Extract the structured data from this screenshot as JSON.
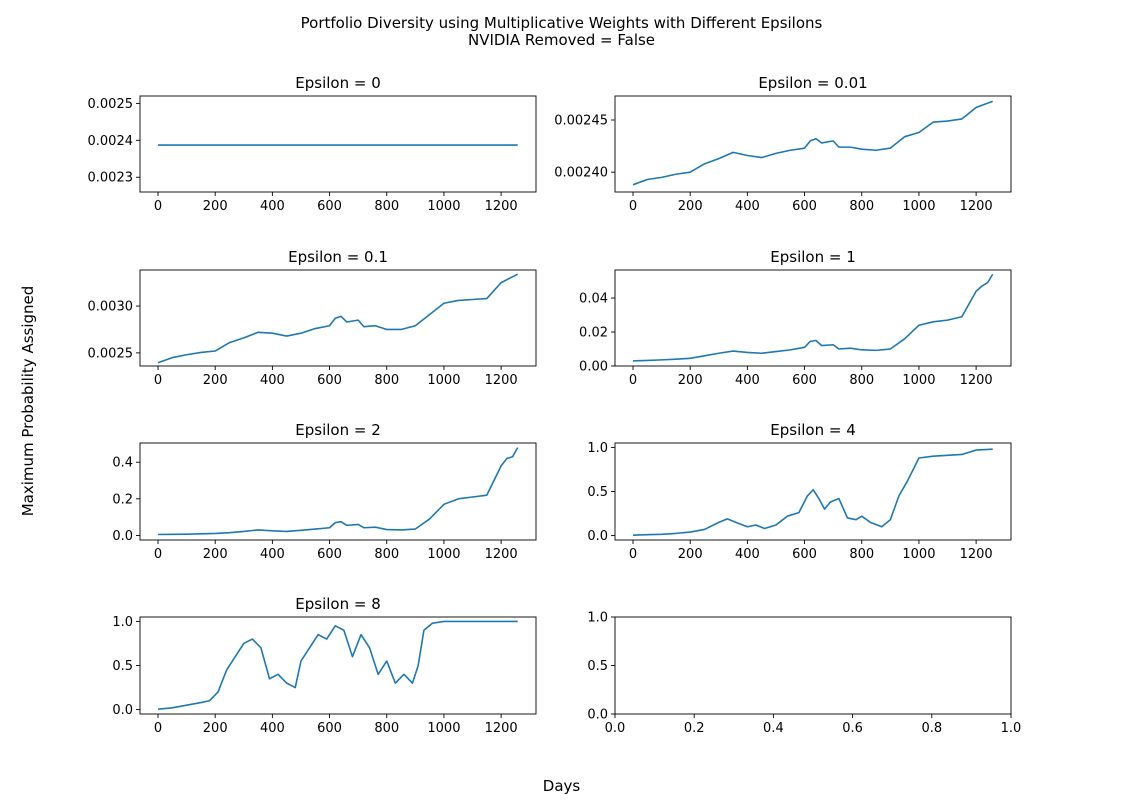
{
  "figure": {
    "title_line1": "Portfolio Diversity using Multiplicative Weights with Different Epsilons",
    "title_line2": "NVIDIA Removed = False",
    "ylabel": "Maximum Probability Assigned",
    "xlabel": "Days"
  },
  "colors": {
    "line": "#1f77b4",
    "axes": "#000000",
    "background": "#ffffff"
  },
  "chart_data": [
    {
      "type": "line",
      "title": "Epsilon = 0",
      "xlim": [
        -63,
        1322
      ],
      "ylim": [
        0.00226,
        0.00252
      ],
      "xticks": [
        0,
        200,
        400,
        600,
        800,
        1000,
        1200
      ],
      "xtick_labels": [
        "0",
        "200",
        "400",
        "600",
        "800",
        "1000",
        "1200"
      ],
      "yticks": [
        0.0023,
        0.0024,
        0.0025
      ],
      "ytick_labels": [
        "0.0023",
        "0.0024",
        "0.0025"
      ],
      "series": [
        {
          "x": [
            0,
            1258
          ],
          "y": [
            0.002387,
            0.002387
          ]
        }
      ]
    },
    {
      "type": "line",
      "title": "Epsilon = 0.01",
      "xlim": [
        -63,
        1322
      ],
      "ylim": [
        0.002381,
        0.002473
      ],
      "xticks": [
        0,
        200,
        400,
        600,
        800,
        1000,
        1200
      ],
      "xtick_labels": [
        "0",
        "200",
        "400",
        "600",
        "800",
        "1000",
        "1200"
      ],
      "yticks": [
        0.0024,
        0.00245
      ],
      "ytick_labels": [
        "0.00240",
        "0.00245"
      ],
      "series": [
        {
          "x": [
            0,
            50,
            100,
            150,
            200,
            250,
            300,
            350,
            400,
            450,
            500,
            550,
            600,
            620,
            640,
            660,
            700,
            720,
            760,
            800,
            850,
            900,
            950,
            1000,
            1050,
            1100,
            1150,
            1200,
            1258
          ],
          "y": [
            0.002388,
            0.002393,
            0.002395,
            0.002398,
            0.0024,
            0.002408,
            0.002413,
            0.002419,
            0.002416,
            0.002414,
            0.002418,
            0.002421,
            0.002423,
            0.00243,
            0.002432,
            0.002428,
            0.00243,
            0.002424,
            0.002424,
            0.002422,
            0.002421,
            0.002423,
            0.002434,
            0.002438,
            0.002448,
            0.002449,
            0.002451,
            0.002462,
            0.002468
          ]
        }
      ]
    },
    {
      "type": "line",
      "title": "Epsilon = 0.1",
      "xlim": [
        -63,
        1322
      ],
      "ylim": [
        0.00236,
        0.003385
      ],
      "xticks": [
        0,
        200,
        400,
        600,
        800,
        1000,
        1200
      ],
      "xtick_labels": [
        "0",
        "200",
        "400",
        "600",
        "800",
        "1000",
        "1200"
      ],
      "yticks": [
        0.0025,
        0.003
      ],
      "ytick_labels": [
        "0.0025",
        "0.0030"
      ],
      "series": [
        {
          "x": [
            0,
            50,
            100,
            150,
            200,
            250,
            300,
            350,
            400,
            450,
            500,
            550,
            600,
            620,
            640,
            660,
            700,
            720,
            760,
            800,
            850,
            900,
            950,
            1000,
            1050,
            1100,
            1150,
            1200,
            1258
          ],
          "y": [
            0.002395,
            0.00245,
            0.00248,
            0.002505,
            0.00252,
            0.00261,
            0.00266,
            0.00272,
            0.00271,
            0.00268,
            0.00271,
            0.00276,
            0.00279,
            0.00287,
            0.00289,
            0.00283,
            0.00285,
            0.00278,
            0.00279,
            0.00275,
            0.00275,
            0.00279,
            0.00291,
            0.00303,
            0.00306,
            0.00307,
            0.00308,
            0.00325,
            0.00334
          ]
        }
      ]
    },
    {
      "type": "line",
      "title": "Epsilon = 1",
      "xlim": [
        -63,
        1322
      ],
      "ylim": [
        0,
        0.0565
      ],
      "xticks": [
        0,
        200,
        400,
        600,
        800,
        1000,
        1200
      ],
      "xtick_labels": [
        "0",
        "200",
        "400",
        "600",
        "800",
        "1000",
        "1200"
      ],
      "yticks": [
        0,
        0.02,
        0.04
      ],
      "ytick_labels": [
        "0.00",
        "0.02",
        "0.04"
      ],
      "series": [
        {
          "x": [
            0,
            50,
            100,
            150,
            200,
            250,
            300,
            350,
            400,
            450,
            500,
            550,
            600,
            620,
            640,
            660,
            700,
            720,
            760,
            800,
            850,
            900,
            950,
            1000,
            1050,
            1100,
            1150,
            1200,
            1220,
            1240,
            1258
          ],
          "y": [
            0.003,
            0.0033,
            0.0036,
            0.004,
            0.0045,
            0.006,
            0.0075,
            0.0088,
            0.008,
            0.0075,
            0.0085,
            0.0095,
            0.011,
            0.0145,
            0.015,
            0.012,
            0.0125,
            0.01,
            0.0105,
            0.0095,
            0.0092,
            0.01,
            0.016,
            0.024,
            0.026,
            0.027,
            0.029,
            0.044,
            0.047,
            0.049,
            0.054
          ]
        }
      ]
    },
    {
      "type": "line",
      "title": "Epsilon = 2",
      "xlim": [
        -63,
        1322
      ],
      "ylim": [
        -0.025,
        0.505
      ],
      "xticks": [
        0,
        200,
        400,
        600,
        800,
        1000,
        1200
      ],
      "xtick_labels": [
        "0",
        "200",
        "400",
        "600",
        "800",
        "1000",
        "1200"
      ],
      "yticks": [
        0,
        0.2,
        0.4
      ],
      "ytick_labels": [
        "0.0",
        "0.2",
        "0.4"
      ],
      "series": [
        {
          "x": [
            0,
            50,
            100,
            150,
            200,
            250,
            300,
            350,
            400,
            450,
            500,
            550,
            600,
            620,
            640,
            660,
            700,
            720,
            760,
            800,
            850,
            900,
            950,
            1000,
            1050,
            1100,
            1150,
            1200,
            1220,
            1240,
            1258
          ],
          "y": [
            0.005,
            0.006,
            0.007,
            0.009,
            0.011,
            0.015,
            0.022,
            0.03,
            0.025,
            0.022,
            0.028,
            0.035,
            0.042,
            0.07,
            0.075,
            0.055,
            0.06,
            0.042,
            0.045,
            0.032,
            0.03,
            0.035,
            0.09,
            0.17,
            0.2,
            0.21,
            0.22,
            0.38,
            0.42,
            0.43,
            0.48
          ]
        }
      ]
    },
    {
      "type": "line",
      "title": "Epsilon = 4",
      "xlim": [
        -63,
        1322
      ],
      "ylim": [
        -0.05,
        1.05
      ],
      "xticks": [
        0,
        200,
        400,
        600,
        800,
        1000,
        1200
      ],
      "xtick_labels": [
        "0",
        "200",
        "400",
        "600",
        "800",
        "1000",
        "1200"
      ],
      "yticks": [
        0,
        0.5,
        1.0
      ],
      "ytick_labels": [
        "0.0",
        "0.5",
        "1.0"
      ],
      "series": [
        {
          "x": [
            0,
            50,
            100,
            150,
            200,
            250,
            300,
            330,
            360,
            400,
            430,
            460,
            500,
            540,
            580,
            610,
            630,
            650,
            670,
            690,
            720,
            750,
            780,
            800,
            830,
            870,
            900,
            930,
            960,
            1000,
            1050,
            1100,
            1150,
            1200,
            1258
          ],
          "y": [
            0.005,
            0.01,
            0.015,
            0.025,
            0.04,
            0.07,
            0.15,
            0.19,
            0.15,
            0.1,
            0.12,
            0.08,
            0.12,
            0.22,
            0.26,
            0.45,
            0.52,
            0.42,
            0.3,
            0.38,
            0.42,
            0.2,
            0.18,
            0.22,
            0.15,
            0.1,
            0.18,
            0.45,
            0.62,
            0.88,
            0.9,
            0.91,
            0.92,
            0.97,
            0.98
          ]
        }
      ]
    },
    {
      "type": "line",
      "title": "Epsilon = 8",
      "xlim": [
        -63,
        1322
      ],
      "ylim": [
        -0.05,
        1.05
      ],
      "xticks": [
        0,
        200,
        400,
        600,
        800,
        1000,
        1200
      ],
      "xtick_labels": [
        "0",
        "200",
        "400",
        "600",
        "800",
        "1000",
        "1200"
      ],
      "yticks": [
        0,
        0.5,
        1.0
      ],
      "ytick_labels": [
        "0.0",
        "0.5",
        "1.0"
      ],
      "series": [
        {
          "x": [
            0,
            50,
            100,
            150,
            180,
            210,
            240,
            270,
            300,
            330,
            360,
            390,
            420,
            450,
            480,
            500,
            530,
            560,
            590,
            620,
            650,
            680,
            710,
            740,
            770,
            800,
            830,
            860,
            890,
            910,
            930,
            960,
            1000,
            1050,
            1100,
            1150,
            1200,
            1258
          ],
          "y": [
            0.005,
            0.02,
            0.05,
            0.08,
            0.1,
            0.2,
            0.45,
            0.6,
            0.75,
            0.8,
            0.7,
            0.35,
            0.4,
            0.3,
            0.25,
            0.55,
            0.7,
            0.85,
            0.8,
            0.95,
            0.9,
            0.6,
            0.85,
            0.7,
            0.4,
            0.55,
            0.3,
            0.4,
            0.3,
            0.5,
            0.9,
            0.98,
            1.0,
            1.0,
            1.0,
            1.0,
            1.0,
            1.0
          ]
        }
      ]
    },
    {
      "type": "line",
      "title": "",
      "xlim": [
        0,
        1
      ],
      "ylim": [
        0,
        1
      ],
      "xticks": [
        0,
        0.2,
        0.4,
        0.6,
        0.8,
        1.0
      ],
      "xtick_labels": [
        "0.0",
        "0.2",
        "0.4",
        "0.6",
        "0.8",
        "1.0"
      ],
      "yticks": [
        0,
        0.5,
        1.0
      ],
      "ytick_labels": [
        "0.0",
        "0.5",
        "1.0"
      ],
      "series": []
    }
  ]
}
